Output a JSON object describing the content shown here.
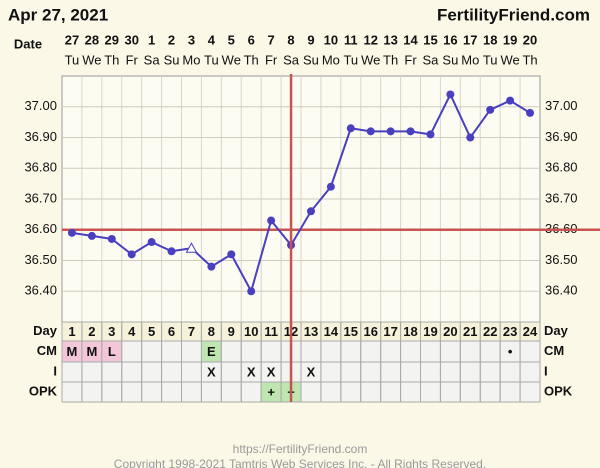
{
  "chart_data": {
    "type": "line",
    "date": "Apr 27, 2021",
    "site": "FertilityFriend.com",
    "date_label": "Date",
    "categories": [
      "27",
      "28",
      "29",
      "30",
      "1",
      "2",
      "3",
      "4",
      "5",
      "6",
      "7",
      "8",
      "9",
      "10",
      "11",
      "12",
      "13",
      "14",
      "15",
      "16",
      "17",
      "18",
      "19",
      "20"
    ],
    "weekdays": [
      "Tu",
      "We",
      "Th",
      "Fr",
      "Sa",
      "Su",
      "Mo",
      "Tu",
      "We",
      "Th",
      "Fr",
      "Sa",
      "Su",
      "Mo",
      "Tu",
      "We",
      "Th",
      "Fr",
      "Sa",
      "Su",
      "Mo",
      "Tu",
      "We",
      "Th"
    ],
    "series": [
      {
        "color": "#4a3fbf",
        "values": [
          36.59,
          36.58,
          36.57,
          36.52,
          36.56,
          36.53,
          36.54,
          36.48,
          36.52,
          36.4,
          36.63,
          36.55,
          36.66,
          36.74,
          36.93,
          36.92,
          36.92,
          36.92,
          36.91,
          37.04,
          36.9,
          36.99,
          37.02,
          36.98
        ],
        "triangle_points": [
          6
        ]
      }
    ],
    "ylim": [
      36.3,
      37.1
    ],
    "yticks": [
      {
        "value": 36.4,
        "label": "36.40"
      },
      {
        "value": 36.5,
        "label": "36.50"
      },
      {
        "value": 36.6,
        "label": "36.60"
      },
      {
        "value": 36.7,
        "label": "36.70"
      },
      {
        "value": 36.8,
        "label": "36.80"
      },
      {
        "value": 36.9,
        "label": "36.90"
      },
      {
        "value": 37.0,
        "label": "37.00"
      }
    ],
    "grid": true,
    "coverline": 36.6,
    "ovulation_day": 12,
    "marker_line_color": "#c9544f",
    "table": {
      "days": {
        "label": "Day",
        "values": [
          1,
          2,
          3,
          4,
          5,
          6,
          7,
          8,
          9,
          10,
          11,
          12,
          13,
          14,
          15,
          16,
          17,
          18,
          19,
          20,
          21,
          22,
          23,
          24
        ]
      },
      "rows": [
        {
          "label": "CM",
          "values": [
            "M",
            "M",
            "L",
            null,
            null,
            null,
            null,
            "E",
            null,
            null,
            null,
            null,
            null,
            null,
            null,
            null,
            null,
            null,
            null,
            null,
            null,
            null,
            "•",
            null
          ],
          "colors": [
            "#f3c6d8",
            "#f3c6d8",
            "#f3c6d8",
            null,
            null,
            null,
            null,
            "#bfe6b0",
            null,
            null,
            null,
            null,
            null,
            null,
            null,
            null,
            null,
            null,
            null,
            null,
            null,
            null,
            null,
            null
          ]
        },
        {
          "label": "I",
          "values": [
            null,
            null,
            null,
            null,
            null,
            null,
            null,
            "X",
            null,
            "X",
            "X",
            null,
            "X",
            null,
            null,
            null,
            null,
            null,
            null,
            null,
            null,
            null,
            null,
            null
          ],
          "colors": [
            null,
            null,
            null,
            null,
            null,
            null,
            null,
            null,
            null,
            null,
            null,
            null,
            null,
            null,
            null,
            null,
            null,
            null,
            null,
            null,
            null,
            null,
            null,
            null
          ]
        },
        {
          "label": "OPK",
          "values": [
            null,
            null,
            null,
            null,
            null,
            null,
            null,
            null,
            null,
            null,
            "+",
            "+",
            null,
            null,
            null,
            null,
            null,
            null,
            null,
            null,
            null,
            null,
            null,
            null
          ],
          "colors": [
            null,
            null,
            null,
            null,
            null,
            null,
            null,
            null,
            null,
            null,
            "#bfe6b0",
            "#bfe6b0",
            null,
            null,
            null,
            null,
            null,
            null,
            null,
            null,
            null,
            null,
            null,
            null
          ]
        }
      ]
    },
    "footer_url": "https://FertilityFriend.com",
    "copyright": "Copyright 1998-2021 Tamtris Web Services Inc. - All Rights Reserved."
  }
}
